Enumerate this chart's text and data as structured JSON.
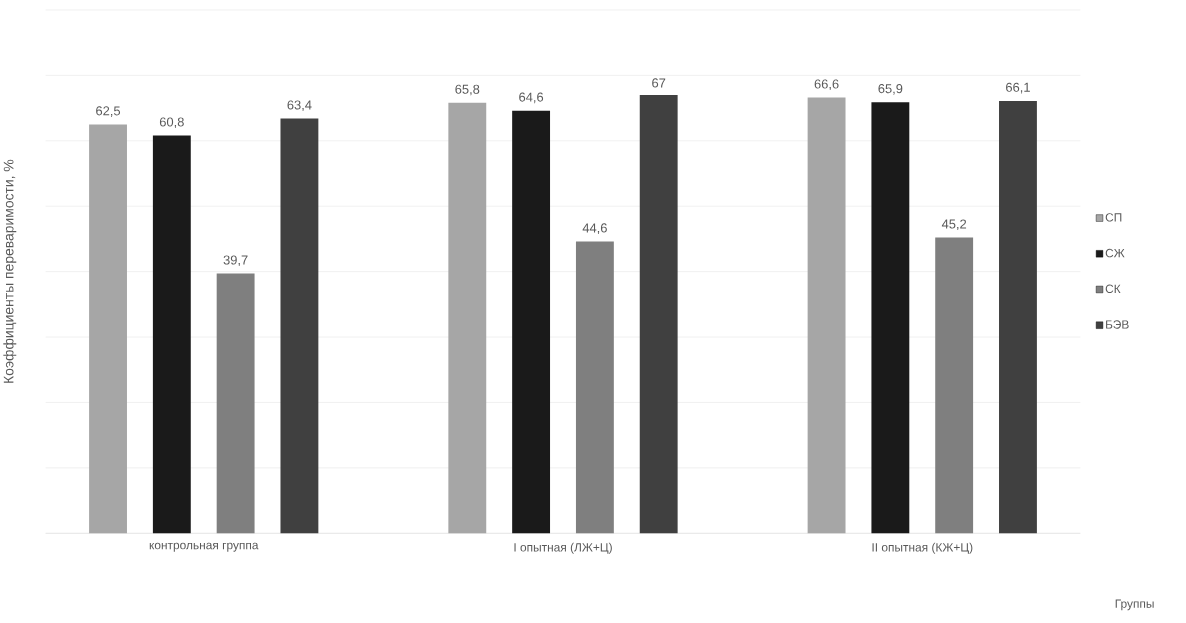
{
  "chart_data": {
    "type": "bar",
    "categories": [
      "контрольная группа",
      "I опытная (ЛЖ+Ц)",
      "II опытная (КЖ+Ц)"
    ],
    "series": [
      {
        "name": "СП",
        "color": "#a6a6a6",
        "values": [
          62.5,
          65.8,
          66.6
        ],
        "value_labels": [
          "62,5",
          "65,8",
          "66,6"
        ]
      },
      {
        "name": "СЖ",
        "color": "#1a1a1a",
        "values": [
          60.8,
          64.6,
          65.9
        ],
        "value_labels": [
          "60,8",
          "64,6",
          "65,9"
        ]
      },
      {
        "name": "СК",
        "color": "#7f7f7f",
        "values": [
          39.7,
          44.6,
          45.2
        ],
        "value_labels": [
          "39,7",
          "44,6",
          "45,2"
        ]
      },
      {
        "name": "БЭВ",
        "color": "#404040",
        "values": [
          63.4,
          67,
          66.1
        ],
        "value_labels": [
          "63,4",
          "67",
          "66,1"
        ]
      }
    ],
    "xlabel": "Группы",
    "ylabel": "Коэффициенты переваримости, %",
    "ylim": [
      0,
      80
    ],
    "yticks": [
      {
        "value": 0,
        "label": null
      },
      {
        "value": 10,
        "label": null
      },
      {
        "value": 20,
        "label": null
      },
      {
        "value": 30,
        "label": null
      },
      {
        "value": 40,
        "label": null
      },
      {
        "value": 50,
        "label": null
      },
      {
        "value": 60,
        "label": null
      },
      {
        "value": 70,
        "label": null
      },
      {
        "value": 80,
        "label": null
      }
    ],
    "tick_labels": "x",
    "grid": "y",
    "legend": "right"
  }
}
